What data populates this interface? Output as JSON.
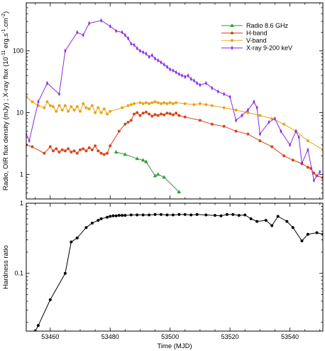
{
  "chart_data": [
    {
      "type": "line",
      "yscale": "log",
      "xlim": [
        53452,
        53551
      ],
      "ylim": [
        0.4,
        600
      ],
      "ylabel": "Radio, OIR flux density (mJy) ; X-ray flux (10$^{-11}$ erg.s$^{-1}$.cm$^{-2}$)",
      "ylabel_parts": {
        "prefix": "Radio, OIR flux density (mJy) ; X-ray flux (10",
        "exp1": "-11",
        "mid1": " erg.s",
        "exp2": "-1",
        "mid2": ".cm",
        "exp3": "-2",
        "suffix": ")"
      },
      "yticks": [
        1,
        10,
        100
      ],
      "ytick_labels": [
        "1",
        "10",
        "100"
      ],
      "grid": false,
      "legend_position": "top-right",
      "series": [
        {
          "name": "Radio 8.6 GHz",
          "color": "#2e9e3a",
          "marker": "triangle",
          "x": [
            53482,
            53485,
            53489,
            53491,
            53492,
            53495,
            53496,
            53498,
            53503
          ],
          "y": [
            2.3,
            2.1,
            1.8,
            1.7,
            1.6,
            0.95,
            1.0,
            0.9,
            0.52
          ]
        },
        {
          "name": "H-band",
          "color": "#d9441c",
          "marker": "circle",
          "x": [
            53452,
            53454,
            53458,
            53460,
            53461,
            53462,
            53463,
            53464,
            53465,
            53466,
            53467,
            53468,
            53469,
            53470,
            53471,
            53472,
            53473,
            53474,
            53475,
            53476,
            53477,
            53478,
            53479,
            53480,
            53483,
            53485,
            53486,
            53487,
            53488,
            53489,
            53490,
            53491,
            53492,
            53493,
            53494,
            53495,
            53496,
            53497,
            53498,
            53499,
            53500,
            53501,
            53502,
            53503,
            53505,
            53510,
            53514,
            53518,
            53522,
            53526,
            53530,
            53534,
            53538,
            53541,
            53544,
            53546,
            53547,
            53548,
            53549,
            53551
          ],
          "y": [
            3.0,
            2.8,
            2.2,
            2.8,
            2.4,
            2.6,
            2.3,
            2.5,
            2.4,
            2.6,
            2.3,
            2.4,
            2.2,
            2.5,
            2.6,
            2.4,
            2.7,
            2.5,
            2.9,
            2.4,
            2.2,
            2.1,
            2.2,
            2.9,
            5.0,
            6.5,
            7.0,
            7.5,
            9.5,
            10.0,
            9.0,
            9.8,
            10.2,
            9.5,
            8.8,
            9.3,
            9.0,
            9.5,
            9.2,
            9.8,
            9.6,
            9.2,
            9.8,
            9.0,
            8.5,
            7.5,
            6.5,
            6.0,
            5.0,
            4.5,
            3.5,
            2.8,
            2.0,
            1.7,
            1.5,
            1.3,
            1.25,
            1.05,
            0.95,
            0.88
          ]
        },
        {
          "name": "V-band",
          "color": "#e8a317",
          "marker": "circle",
          "x": [
            53452,
            53454,
            53456,
            53458,
            53459,
            53460,
            53461,
            53462,
            53463,
            53464,
            53465,
            53466,
            53467,
            53468,
            53469,
            53470,
            53471,
            53472,
            53473,
            53474,
            53475,
            53476,
            53477,
            53478,
            53479,
            53480,
            53484,
            53486,
            53487,
            53488,
            53490,
            53491,
            53492,
            53493,
            53494,
            53495,
            53496,
            53497,
            53498,
            53499,
            53500,
            53501,
            53502,
            53505,
            53508,
            53510,
            53512,
            53514,
            53518,
            53522,
            53526,
            53530,
            53534,
            53538,
            53542,
            53546,
            53551
          ],
          "y": [
            18.0,
            15.0,
            13.0,
            12.0,
            15.0,
            13.0,
            12.5,
            10.5,
            13.0,
            11.0,
            13.0,
            10.5,
            12.5,
            11.0,
            12.5,
            10.5,
            14.0,
            12.0,
            11.5,
            13.0,
            10.0,
            12.0,
            10.0,
            11.5,
            9.5,
            10.5,
            12.0,
            13.0,
            13.5,
            14.0,
            14.5,
            14.0,
            14.5,
            14.0,
            14.5,
            15.0,
            14.5,
            14.0,
            14.5,
            14.0,
            14.5,
            14.0,
            14.5,
            14.0,
            13.5,
            14.0,
            13.5,
            13.0,
            12.0,
            11.0,
            10.0,
            9.0,
            8.0,
            6.5,
            5.0,
            3.5,
            2.5
          ]
        },
        {
          "name": "X-ray 9-200 keV",
          "color": "#8a2be2",
          "marker": "thin-diamond",
          "x": [
            53452,
            53453,
            53456,
            53459,
            53463,
            53465,
            53469,
            53471,
            53473,
            53477,
            53480,
            53482,
            53484,
            53485,
            53486,
            53487,
            53488,
            53489,
            53490,
            53491,
            53492,
            53493,
            53494,
            53495,
            53496,
            53497,
            53498,
            53499,
            53500,
            53501,
            53502,
            53503,
            53504,
            53505,
            53506,
            53507,
            53508,
            53509,
            53510,
            53512,
            53514,
            53516,
            53518,
            53520,
            53522,
            53524,
            53526,
            53528,
            53529,
            53530,
            53533,
            53535,
            53537,
            53540,
            53542,
            53543,
            53544,
            53546,
            53548,
            53550
          ],
          "y": [
            4.5,
            3.5,
            15.0,
            30.0,
            20.0,
            100.0,
            200.0,
            180.0,
            280.0,
            310.0,
            250.0,
            210.0,
            200.0,
            180.0,
            160.0,
            130.0,
            125.0,
            110.0,
            100.0,
            95.0,
            90.0,
            80.0,
            85.0,
            75.0,
            70.0,
            65.0,
            60.0,
            55.0,
            50.0,
            48.0,
            45.0,
            42.0,
            40.0,
            38.0,
            40.0,
            35.0,
            33.0,
            30.0,
            28.0,
            30.0,
            25.0,
            22.0,
            20.0,
            18.0,
            7.5,
            9.0,
            11.0,
            15.0,
            12.0,
            4.5,
            7.0,
            8.0,
            5.0,
            3.0,
            5.0,
            4.0,
            1.5,
            2.5,
            0.8,
            1.1
          ]
        }
      ]
    },
    {
      "type": "line",
      "yscale": "log",
      "xlim": [
        53452,
        53551
      ],
      "ylim": [
        0.015,
        1.0
      ],
      "ylabel": "Hardness ratio",
      "xlabel": "Time (MJD)",
      "yticks": [
        0.1,
        1
      ],
      "ytick_labels": [
        "0.1",
        "1"
      ],
      "xticks": [
        53460,
        53480,
        53500,
        53520,
        53540
      ],
      "xtick_labels": [
        "53460",
        "53480",
        "53500",
        "53520",
        "53540"
      ],
      "grid": false,
      "series": [
        {
          "color": "#000000",
          "marker": "circle",
          "x": [
            53455,
            53456,
            53460,
            53465,
            53467,
            53469,
            53472,
            53474,
            53476,
            53477,
            53479,
            53480,
            53481,
            53482,
            53483,
            53484,
            53485,
            53487,
            53489,
            53491,
            53493,
            53495,
            53497,
            53499,
            53501,
            53503,
            53505,
            53507,
            53509,
            53512,
            53515,
            53517,
            53519,
            53521,
            53523,
            53525,
            53527,
            53529,
            53532,
            53534,
            53536,
            53539,
            53541,
            53544,
            53546,
            53549,
            53551
          ],
          "y": [
            0.015,
            0.018,
            0.042,
            0.1,
            0.28,
            0.32,
            0.45,
            0.52,
            0.57,
            0.6,
            0.63,
            0.65,
            0.66,
            0.66,
            0.67,
            0.67,
            0.67,
            0.68,
            0.68,
            0.68,
            0.68,
            0.69,
            0.69,
            0.68,
            0.68,
            0.69,
            0.69,
            0.68,
            0.69,
            0.68,
            0.67,
            0.66,
            0.69,
            0.69,
            0.67,
            0.68,
            0.6,
            0.55,
            0.57,
            0.48,
            0.65,
            0.55,
            0.45,
            0.29,
            0.36,
            0.38,
            0.36
          ]
        }
      ]
    }
  ]
}
